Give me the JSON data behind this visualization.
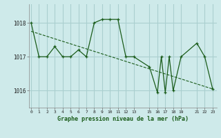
{
  "title": "Graphe pression niveau de la mer (hPa)",
  "background_color": "#ceeaea",
  "grid_color": "#aacfcf",
  "line_color": "#1a5c1a",
  "marker_color": "#1a5c1a",
  "x_values": [
    0,
    1,
    2,
    3,
    4,
    5,
    6,
    7,
    8,
    9,
    10,
    11,
    12,
    13,
    15,
    16,
    16.5,
    17,
    17.5,
    18,
    19,
    21,
    22,
    23
  ],
  "y_values": [
    1018.0,
    1017.0,
    1017.0,
    1017.3,
    1017.0,
    1017.0,
    1017.2,
    1017.0,
    1018.0,
    1018.1,
    1018.1,
    1018.1,
    1017.0,
    1017.0,
    1016.7,
    1015.95,
    1017.0,
    1015.95,
    1017.0,
    1016.0,
    1017.0,
    1017.4,
    1017.0,
    1016.05
  ],
  "trend_x": [
    0,
    23
  ],
  "trend_y": [
    1017.75,
    1016.05
  ],
  "ytick_vals": [
    1016,
    1017,
    1018
  ],
  "ytick_labels": [
    "1016",
    "1017",
    "1018"
  ],
  "xtick_vals": [
    0,
    1,
    2,
    3,
    4,
    5,
    6,
    7,
    8,
    9,
    10,
    11,
    12,
    13,
    15,
    16,
    17,
    18,
    19,
    21,
    22,
    23
  ],
  "xtick_labels": [
    "0",
    "1",
    "2",
    "3",
    "4",
    "5",
    "6",
    "7",
    "8",
    "9",
    "10",
    "11",
    "12",
    "13",
    "15",
    "16",
    "17",
    "18",
    "19",
    "21",
    "22",
    "23"
  ],
  "xlim": [
    -0.3,
    23.5
  ],
  "ylim": [
    1015.5,
    1018.55
  ]
}
